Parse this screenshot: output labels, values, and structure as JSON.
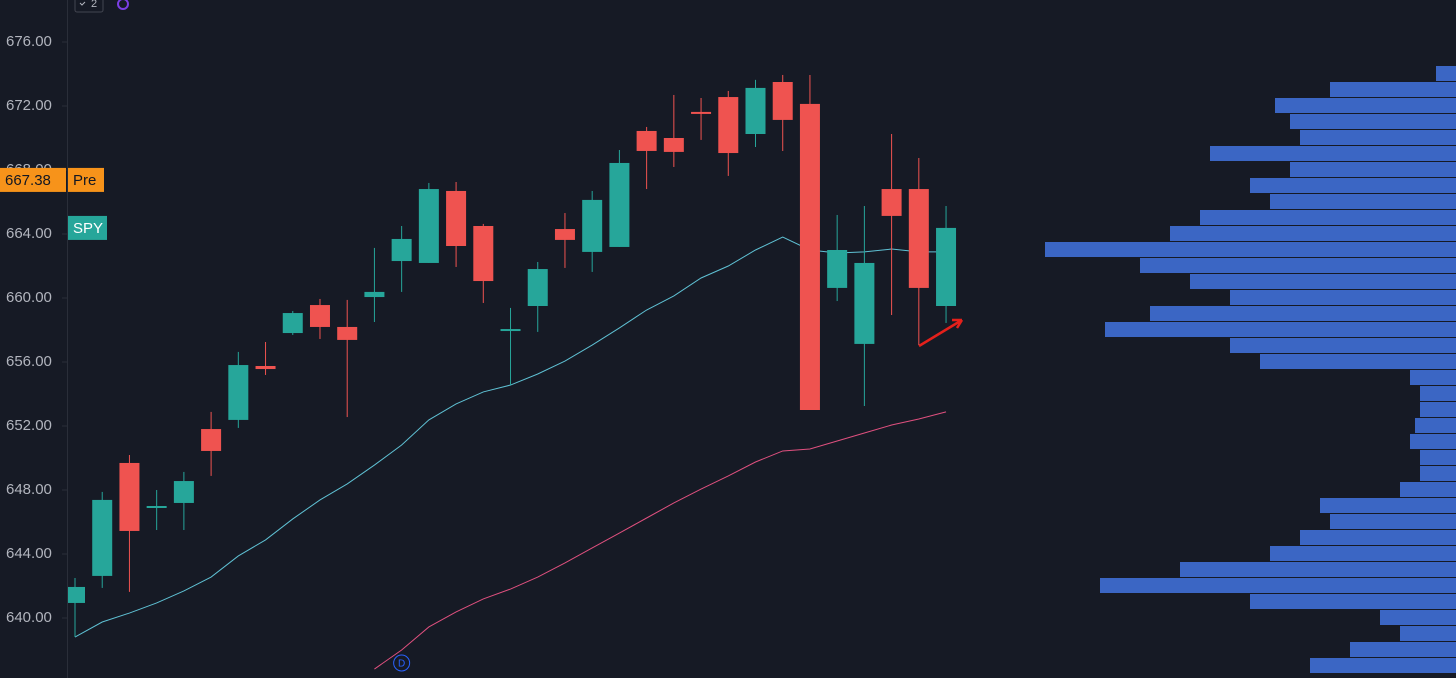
{
  "chart_data": {
    "type": "candlestick",
    "symbol": "SPY",
    "indicator_count": "2",
    "event_marker": "D",
    "premarket": {
      "value": 667.38,
      "label": "Pre"
    },
    "ylim": [
      636.25,
      678.625
    ],
    "yticks": [
      {
        "value": 640,
        "label": "640.00"
      },
      {
        "value": 644,
        "label": "644.00"
      },
      {
        "value": 648,
        "label": "648.00"
      },
      {
        "value": 652,
        "label": "652.00"
      },
      {
        "value": 656,
        "label": "656.00"
      },
      {
        "value": 660,
        "label": "660.00"
      },
      {
        "value": 664,
        "label": "664.00"
      },
      {
        "value": 668,
        "label": "668.00"
      },
      {
        "value": 672,
        "label": "672.00"
      },
      {
        "value": 676,
        "label": "676.00"
      }
    ],
    "up_color": "#26a69a",
    "down_color": "#ef5350",
    "open": [
      640.94,
      642.63,
      649.69,
      646.88,
      647.19,
      651.81,
      652.38,
      655.75,
      657.81,
      659.56,
      658.19,
      660.06,
      662.31,
      662.19,
      666.69,
      664.5,
      657.94,
      659.5,
      664.31,
      662.88,
      663.19,
      670.44,
      670.0,
      671.63,
      672.56,
      670.25,
      673.5,
      672.13,
      660.63,
      657.13,
      666.81,
      666.81,
      659.5
    ],
    "high": [
      642.5,
      647.88,
      650.19,
      648.0,
      649.13,
      652.88,
      656.63,
      657.25,
      659.19,
      659.94,
      659.88,
      663.13,
      664.5,
      667.19,
      667.25,
      664.63,
      659.38,
      662.25,
      665.31,
      666.69,
      669.25,
      670.69,
      672.69,
      672.5,
      672.94,
      673.63,
      673.94,
      673.94,
      665.19,
      665.75,
      670.25,
      668.75,
      665.75
    ],
    "low": [
      638.81,
      641.88,
      641.63,
      645.5,
      645.5,
      648.88,
      651.88,
      655.19,
      657.69,
      657.44,
      652.56,
      658.5,
      660.38,
      662.19,
      661.94,
      659.69,
      654.56,
      657.88,
      661.88,
      661.63,
      663.19,
      666.81,
      668.19,
      669.88,
      667.63,
      669.44,
      669.19,
      653.0,
      659.81,
      653.25,
      658.94,
      657.06,
      658.44
    ],
    "close": [
      641.94,
      647.38,
      645.44,
      647.0,
      648.56,
      650.44,
      655.81,
      655.56,
      659.06,
      658.19,
      657.38,
      660.38,
      663.69,
      666.81,
      663.25,
      661.06,
      658.06,
      661.81,
      663.63,
      666.13,
      668.44,
      669.19,
      669.13,
      671.56,
      669.06,
      673.13,
      671.13,
      653.0,
      663.0,
      662.19,
      665.13,
      660.63,
      664.38
    ],
    "series": [
      {
        "color": "#5fc1d4",
        "values": [
          638.81,
          639.75,
          640.31,
          640.94,
          641.69,
          642.56,
          643.88,
          644.88,
          646.19,
          647.38,
          648.38,
          649.56,
          650.81,
          652.38,
          653.38,
          654.13,
          654.56,
          655.25,
          656.06,
          657.06,
          658.13,
          659.25,
          660.13,
          661.25,
          662.0,
          663.0,
          663.81,
          663.0,
          662.81,
          662.88,
          663.06,
          662.88,
          662.88
        ]
      },
      {
        "color": "#e0507f",
        "values": [
          null,
          null,
          null,
          null,
          null,
          null,
          null,
          null,
          null,
          null,
          null,
          636.81,
          638.0,
          639.44,
          640.38,
          641.19,
          641.81,
          642.56,
          643.44,
          644.38,
          645.31,
          646.25,
          647.19,
          648.06,
          648.88,
          649.75,
          650.44,
          650.56,
          651.06,
          651.56,
          652.06,
          652.44,
          652.88
        ]
      }
    ],
    "volume_profile": {
      "color": "#3b66c4",
      "prices": [
        674,
        673,
        672,
        671,
        670,
        669,
        668,
        667,
        666,
        665,
        664,
        663,
        662,
        661,
        660,
        659,
        658,
        657,
        656,
        655,
        654,
        653,
        652,
        651,
        650,
        649,
        648,
        647,
        646,
        645,
        644,
        643,
        642,
        641,
        640,
        639,
        638,
        637
      ],
      "values": [
        20,
        126,
        181,
        166,
        156,
        246,
        166,
        206,
        186,
        256,
        286,
        411,
        316,
        266,
        226,
        306,
        351,
        226,
        196,
        46,
        36,
        36,
        41,
        46,
        36,
        36,
        56,
        136,
        126,
        156,
        186,
        276,
        356,
        206,
        76,
        56,
        106,
        146
      ]
    }
  }
}
